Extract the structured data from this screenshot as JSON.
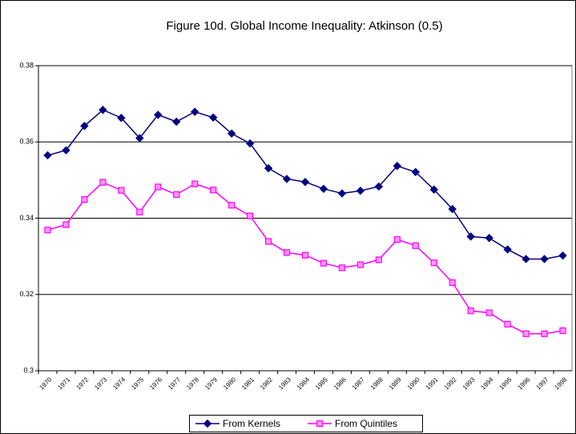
{
  "chart_data": {
    "type": "line",
    "title": "Figure 10d. Global Income Inequality: Atkinson (0.5)",
    "categories": [
      "1970",
      "1971",
      "1972",
      "1973",
      "1974",
      "1975",
      "1976",
      "1977",
      "1978",
      "1979",
      "1980",
      "1981",
      "1982",
      "1983",
      "1984",
      "1985",
      "1986",
      "1987",
      "1988",
      "1989",
      "1990",
      "1991",
      "1992",
      "1993",
      "1994",
      "1995",
      "1996",
      "1997",
      "1998"
    ],
    "series": [
      {
        "name": "From Kernels",
        "color": "#000080",
        "marker": "diamond",
        "values": [
          0.3565,
          0.3578,
          0.3642,
          0.3684,
          0.3663,
          0.361,
          0.3671,
          0.3653,
          0.3679,
          0.3664,
          0.3622,
          0.3596,
          0.3531,
          0.3503,
          0.3495,
          0.3477,
          0.3465,
          0.3472,
          0.3483,
          0.3537,
          0.3521,
          0.3475,
          0.3424,
          0.3352,
          0.3348,
          0.3318,
          0.3293,
          0.3293,
          0.3302
        ]
      },
      {
        "name": "From Quintiles",
        "color": "#ff00ff",
        "marker": "square",
        "values": [
          0.3369,
          0.3383,
          0.3449,
          0.3494,
          0.3473,
          0.3416,
          0.3482,
          0.3462,
          0.349,
          0.3474,
          0.3434,
          0.3406,
          0.3339,
          0.331,
          0.3303,
          0.3282,
          0.327,
          0.3278,
          0.3291,
          0.3344,
          0.3328,
          0.3283,
          0.3231,
          0.3157,
          0.3152,
          0.3122,
          0.3097,
          0.3097,
          0.3105
        ]
      }
    ],
    "ylim": [
      0.3,
      0.38
    ],
    "yticks": [
      0.3,
      0.32,
      0.34,
      0.36,
      0.38
    ],
    "grid": true
  }
}
